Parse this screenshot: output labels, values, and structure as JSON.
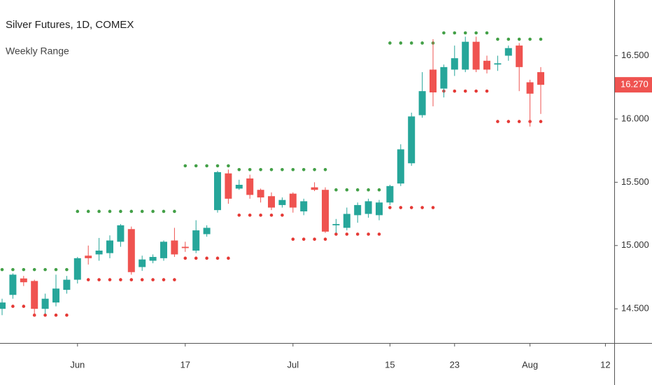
{
  "chart_data": {
    "type": "candlestick",
    "title": "Silver Futures, 1D, COMEX",
    "subtitle": "Weekly Range",
    "categories": [
      null,
      null,
      null,
      null,
      null,
      null,
      null,
      "Jun",
      null,
      null,
      null,
      null,
      null,
      null,
      null,
      null,
      null,
      "17",
      null,
      null,
      null,
      null,
      null,
      null,
      null,
      null,
      null,
      "Jul",
      null,
      null,
      null,
      null,
      null,
      null,
      null,
      null,
      "15",
      null,
      null,
      null,
      null,
      null,
      "23",
      null,
      null,
      null,
      null,
      null,
      null,
      "Aug",
      null,
      null,
      null,
      null,
      null,
      null,
      "12"
    ],
    "open": [
      14.5,
      14.61,
      14.74,
      14.72,
      14.5,
      14.55,
      14.65,
      14.73,
      14.92,
      14.93,
      14.94,
      15.03,
      15.13,
      14.83,
      14.88,
      14.9,
      15.04,
      14.99,
      14.96,
      15.09,
      15.28,
      15.57,
      15.45,
      15.53,
      15.44,
      15.39,
      15.32,
      15.41,
      15.27,
      15.46,
      15.44,
      15.16,
      15.14,
      15.24,
      15.25,
      15.24,
      15.34,
      15.49,
      15.65,
      16.03,
      16.39,
      16.24,
      16.39,
      16.39,
      16.61,
      16.46,
      16.43,
      16.5,
      16.58,
      16.29,
      16.37,
      null,
      null,
      null,
      null,
      null,
      null
    ],
    "high": [
      14.58,
      14.78,
      14.76,
      14.73,
      14.62,
      14.77,
      14.76,
      14.91,
      15.0,
      15.06,
      15.08,
      15.17,
      15.15,
      14.92,
      14.93,
      15.04,
      15.14,
      15.03,
      15.2,
      15.16,
      15.59,
      15.6,
      15.52,
      15.56,
      15.45,
      15.42,
      15.38,
      15.42,
      15.37,
      15.5,
      15.46,
      15.21,
      15.3,
      15.34,
      15.37,
      15.36,
      15.48,
      15.8,
      16.05,
      16.37,
      16.63,
      16.43,
      16.58,
      16.65,
      16.65,
      16.5,
      16.5,
      16.58,
      16.6,
      16.31,
      16.41,
      null,
      null,
      null,
      null,
      null,
      null
    ],
    "low": [
      14.45,
      14.58,
      14.68,
      14.44,
      14.46,
      14.52,
      14.62,
      14.7,
      14.85,
      14.88,
      14.9,
      14.99,
      14.77,
      14.8,
      14.86,
      14.88,
      14.91,
      14.95,
      14.94,
      15.07,
      15.26,
      15.33,
      15.44,
      15.37,
      15.34,
      15.28,
      15.3,
      15.26,
      15.24,
      15.43,
      15.1,
      15.1,
      15.12,
      15.18,
      15.22,
      15.2,
      15.32,
      15.47,
      15.63,
      16.01,
      16.1,
      16.17,
      16.34,
      16.37,
      16.37,
      16.36,
      16.38,
      16.46,
      16.22,
      15.94,
      16.04,
      null,
      null,
      null,
      null,
      null,
      null
    ],
    "close": [
      14.55,
      14.77,
      14.71,
      14.5,
      14.58,
      14.66,
      14.73,
      14.9,
      14.9,
      14.96,
      15.04,
      15.16,
      14.79,
      14.89,
      14.91,
      15.03,
      14.93,
      14.98,
      15.12,
      15.14,
      15.58,
      15.37,
      15.48,
      15.4,
      15.38,
      15.3,
      15.36,
      15.3,
      15.35,
      15.44,
      15.11,
      15.17,
      15.25,
      15.32,
      15.35,
      15.34,
      15.47,
      15.76,
      16.02,
      16.22,
      16.21,
      16.41,
      16.48,
      16.61,
      16.39,
      16.39,
      16.44,
      16.56,
      16.41,
      16.2,
      16.27,
      null,
      null,
      null,
      null,
      null,
      null
    ],
    "last_label": "16.270",
    "up_color": "#26a69a",
    "down_color": "#ef5350",
    "range_high": {
      "color": "#43a047",
      "values": [
        14.81,
        14.81,
        14.81,
        14.81,
        14.81,
        14.81,
        14.81,
        15.27,
        15.27,
        15.27,
        15.27,
        15.27,
        15.27,
        15.27,
        15.27,
        15.27,
        15.27,
        15.63,
        15.63,
        15.63,
        15.63,
        15.63,
        15.6,
        15.6,
        15.6,
        15.6,
        15.6,
        15.6,
        15.6,
        15.6,
        15.6,
        15.44,
        15.44,
        15.44,
        15.44,
        15.44,
        16.6,
        16.6,
        16.6,
        16.6,
        16.6,
        16.68,
        16.68,
        16.68,
        16.68,
        16.68,
        16.63,
        16.63,
        16.63,
        16.63,
        16.63,
        null,
        null,
        null,
        null,
        null,
        null
      ]
    },
    "range_low": {
      "color": "#e53935",
      "values": [
        14.52,
        14.52,
        14.52,
        14.45,
        14.45,
        14.45,
        14.45,
        null,
        14.73,
        14.73,
        14.73,
        14.73,
        14.73,
        14.73,
        14.73,
        14.73,
        14.73,
        14.9,
        14.9,
        14.9,
        14.9,
        14.9,
        15.24,
        15.24,
        15.24,
        15.24,
        15.24,
        15.05,
        15.05,
        15.05,
        15.05,
        15.09,
        15.09,
        15.09,
        15.09,
        15.09,
        15.3,
        15.3,
        15.3,
        15.3,
        15.3,
        16.22,
        16.22,
        16.22,
        16.22,
        16.22,
        15.98,
        15.98,
        15.98,
        15.98,
        15.98,
        null,
        null,
        null,
        null,
        null,
        null
      ]
    },
    "ylim": [
      14.23,
      16.94
    ],
    "yticks": [
      {
        "value": 14.5,
        "label": "14.500"
      },
      {
        "value": 15,
        "label": "15.000"
      },
      {
        "value": 15.5,
        "label": "15.500"
      },
      {
        "value": 16,
        "label": "16.000"
      },
      {
        "value": 16.5,
        "label": "16.500"
      }
    ]
  }
}
